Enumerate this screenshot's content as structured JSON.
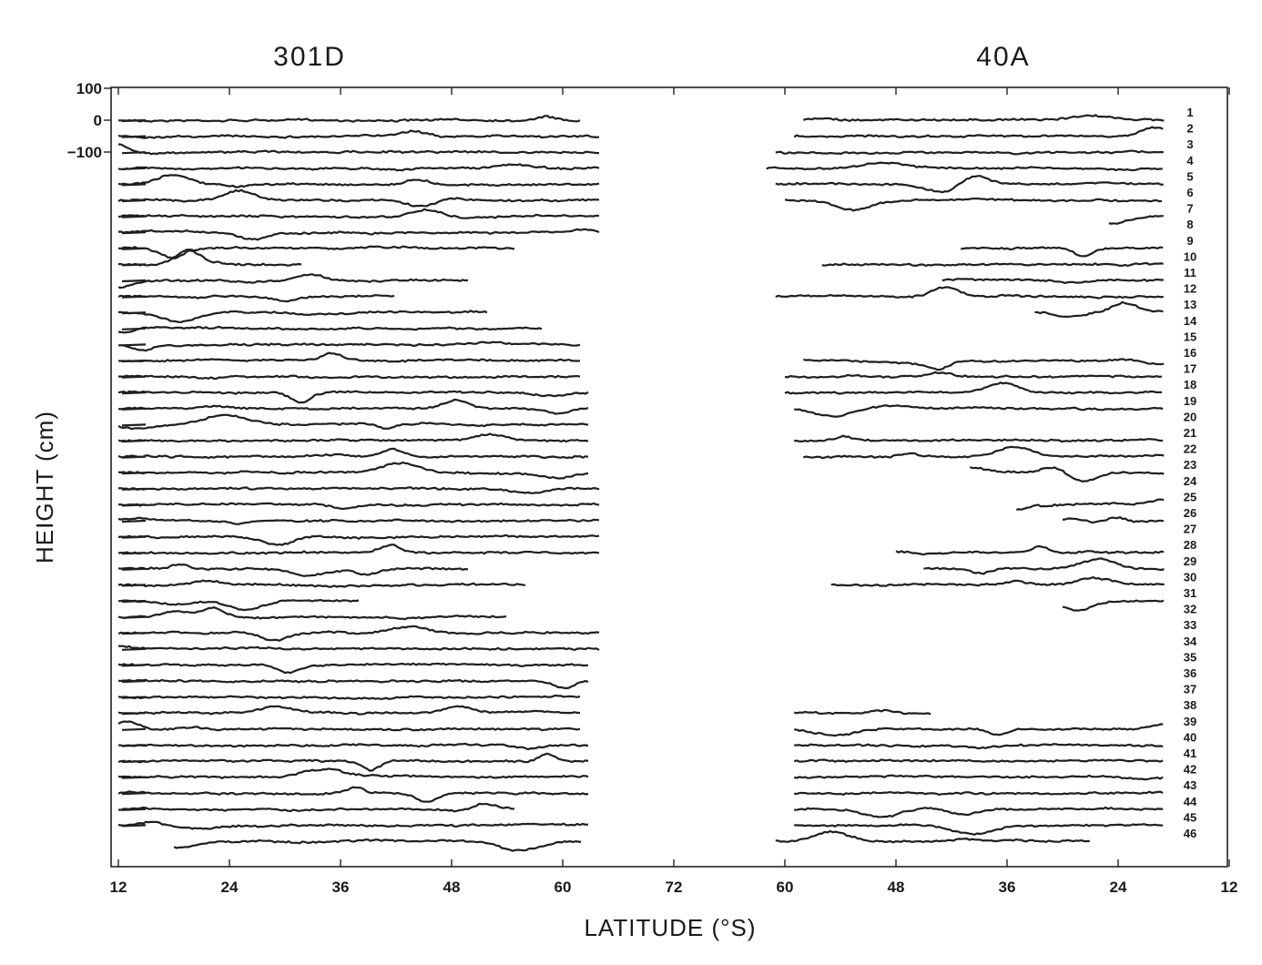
{
  "chart_data": {
    "type": "line",
    "panels": [
      {
        "title": "301D",
        "profile_count": 46
      },
      {
        "title": "40A",
        "profile_count": 46
      }
    ],
    "xlabel": "LATITUDE (°S)",
    "ylabel": "HEIGHT (cm)",
    "x_ticks": [
      "12",
      "24",
      "36",
      "48",
      "60",
      "72",
      "60",
      "48",
      "36",
      "24",
      "12"
    ],
    "x_tick_values_data_units": [
      12,
      24,
      36,
      48,
      60,
      72,
      60,
      48,
      36,
      24,
      12
    ],
    "y_ticks": [
      "100",
      "0",
      "−100"
    ],
    "y_tick_values_cm": [
      100,
      0,
      -100
    ],
    "profile_labels": [
      "1",
      "2",
      "3",
      "4",
      "5",
      "6",
      "7",
      "8",
      "9",
      "10",
      "11",
      "12",
      "13",
      "14",
      "15",
      "16",
      "17",
      "18",
      "19",
      "20",
      "21",
      "22",
      "23",
      "24",
      "25",
      "26",
      "27",
      "28",
      "29",
      "30",
      "31",
      "32",
      "33",
      "34",
      "35",
      "36",
      "37",
      "38",
      "39",
      "40",
      "41",
      "42",
      "43",
      "44",
      "45",
      "46"
    ],
    "series_301D": [
      {
        "n": 1,
        "xmin": 12,
        "xmax": 62
      },
      {
        "n": 2,
        "xmin": 12,
        "xmax": 64
      },
      {
        "n": 3,
        "xmin": 12,
        "xmax": 64
      },
      {
        "n": 4,
        "xmin": 12,
        "xmax": 64
      },
      {
        "n": 5,
        "xmin": 12,
        "xmax": 64
      },
      {
        "n": 6,
        "xmin": 12,
        "xmax": 64
      },
      {
        "n": 7,
        "xmin": 12,
        "xmax": 64
      },
      {
        "n": 8,
        "xmin": 12,
        "xmax": 64
      },
      {
        "n": 9,
        "xmin": 12,
        "xmax": 55
      },
      {
        "n": 10,
        "xmin": 12,
        "xmax": 32
      },
      {
        "n": 11,
        "xmin": 12,
        "xmax": 50
      },
      {
        "n": 12,
        "xmin": 12,
        "xmax": 42
      },
      {
        "n": 13,
        "xmin": 12,
        "xmax": 52
      },
      {
        "n": 14,
        "xmin": 12,
        "xmax": 58
      },
      {
        "n": 15,
        "xmin": 12,
        "xmax": 62
      },
      {
        "n": 16,
        "xmin": 12,
        "xmax": 62
      },
      {
        "n": 17,
        "xmin": 12,
        "xmax": 62
      },
      {
        "n": 18,
        "xmin": 12,
        "xmax": 63
      },
      {
        "n": 19,
        "xmin": 12,
        "xmax": 63
      },
      {
        "n": 20,
        "xmin": 12,
        "xmax": 63
      },
      {
        "n": 21,
        "xmin": 12,
        "xmax": 63
      },
      {
        "n": 22,
        "xmin": 12,
        "xmax": 63
      },
      {
        "n": 23,
        "xmin": 12,
        "xmax": 63
      },
      {
        "n": 24,
        "xmin": 12,
        "xmax": 64
      },
      {
        "n": 25,
        "xmin": 12,
        "xmax": 64
      },
      {
        "n": 26,
        "xmin": 12,
        "xmax": 64
      },
      {
        "n": 27,
        "xmin": 12,
        "xmax": 64
      },
      {
        "n": 28,
        "xmin": 12,
        "xmax": 64
      },
      {
        "n": 29,
        "xmin": 12,
        "xmax": 50
      },
      {
        "n": 30,
        "xmin": 12,
        "xmax": 56
      },
      {
        "n": 31,
        "xmin": 12,
        "xmax": 38
      },
      {
        "n": 32,
        "xmin": 12,
        "xmax": 54
      },
      {
        "n": 33,
        "xmin": 12,
        "xmax": 64
      },
      {
        "n": 34,
        "xmin": 12,
        "xmax": 64
      },
      {
        "n": 35,
        "xmin": 12,
        "xmax": 63
      },
      {
        "n": 36,
        "xmin": 12,
        "xmax": 63
      },
      {
        "n": 37,
        "xmin": 12,
        "xmax": 62
      },
      {
        "n": 38,
        "xmin": 12,
        "xmax": 62
      },
      {
        "n": 39,
        "xmin": 12,
        "xmax": 62
      },
      {
        "n": 40,
        "xmin": 12,
        "xmax": 63
      },
      {
        "n": 41,
        "xmin": 12,
        "xmax": 63
      },
      {
        "n": 42,
        "xmin": 12,
        "xmax": 63
      },
      {
        "n": 43,
        "xmin": 12,
        "xmax": 63
      },
      {
        "n": 44,
        "xmin": 12,
        "xmax": 55
      },
      {
        "n": 45,
        "xmin": 12,
        "xmax": 63
      },
      {
        "n": 46,
        "xmin": 18,
        "xmax": 62
      }
    ],
    "series_40A": [
      {
        "n": 1,
        "xmin": 19,
        "xmax": 58
      },
      {
        "n": 2,
        "xmin": 19,
        "xmax": 59
      },
      {
        "n": 3,
        "xmin": 19,
        "xmax": 61
      },
      {
        "n": 4,
        "xmin": 19,
        "xmax": 62
      },
      {
        "n": 5,
        "xmin": 19,
        "xmax": 61
      },
      {
        "n": 6,
        "xmin": 19,
        "xmax": 60
      },
      {
        "n": 7,
        "xmin": 19,
        "xmax": 25
      },
      {
        "n": 8,
        "xmin": null,
        "xmax": null
      },
      {
        "n": 9,
        "xmin": 19,
        "xmax": 41
      },
      {
        "n": 10,
        "xmin": 19,
        "xmax": 56
      },
      {
        "n": 11,
        "xmin": 19,
        "xmax": 43
      },
      {
        "n": 12,
        "xmin": 19,
        "xmax": 61
      },
      {
        "n": 13,
        "xmin": 19,
        "xmax": 33
      },
      {
        "n": 14,
        "xmin": null,
        "xmax": null
      },
      {
        "n": 15,
        "xmin": null,
        "xmax": null
      },
      {
        "n": 16,
        "xmin": 19,
        "xmax": 58
      },
      {
        "n": 17,
        "xmin": 19,
        "xmax": 60
      },
      {
        "n": 18,
        "xmin": 19,
        "xmax": 60
      },
      {
        "n": 19,
        "xmin": 19,
        "xmax": 59
      },
      {
        "n": 20,
        "xmin": null,
        "xmax": null
      },
      {
        "n": 21,
        "xmin": 19,
        "xmax": 59
      },
      {
        "n": 22,
        "xmin": 19,
        "xmax": 58
      },
      {
        "n": 23,
        "xmin": 19,
        "xmax": 40
      },
      {
        "n": 24,
        "xmin": null,
        "xmax": null
      },
      {
        "n": 25,
        "xmin": 19,
        "xmax": 35
      },
      {
        "n": 26,
        "xmin": 19,
        "xmax": 30
      },
      {
        "n": 27,
        "xmin": null,
        "xmax": null
      },
      {
        "n": 28,
        "xmin": 19,
        "xmax": 48
      },
      {
        "n": 29,
        "xmin": 19,
        "xmax": 45
      },
      {
        "n": 30,
        "xmin": 19,
        "xmax": 55
      },
      {
        "n": 31,
        "xmin": 19,
        "xmax": 30
      },
      {
        "n": 32,
        "xmin": null,
        "xmax": null
      },
      {
        "n": 33,
        "xmin": null,
        "xmax": null
      },
      {
        "n": 34,
        "xmin": null,
        "xmax": null
      },
      {
        "n": 35,
        "xmin": null,
        "xmax": null
      },
      {
        "n": 36,
        "xmin": null,
        "xmax": null
      },
      {
        "n": 37,
        "xmin": null,
        "xmax": null
      },
      {
        "n": 38,
        "xmin": 44,
        "xmax": 59
      },
      {
        "n": 39,
        "xmin": 19,
        "xmax": 59
      },
      {
        "n": 40,
        "xmin": 19,
        "xmax": 59
      },
      {
        "n": 41,
        "xmin": 19,
        "xmax": 59
      },
      {
        "n": 42,
        "xmin": 19,
        "xmax": 59
      },
      {
        "n": 43,
        "xmin": 19,
        "xmax": 59
      },
      {
        "n": 44,
        "xmin": 19,
        "xmax": 59
      },
      {
        "n": 45,
        "xmin": 19,
        "xmax": 59
      },
      {
        "n": 46,
        "xmin": 27,
        "xmax": 61
      }
    ]
  }
}
